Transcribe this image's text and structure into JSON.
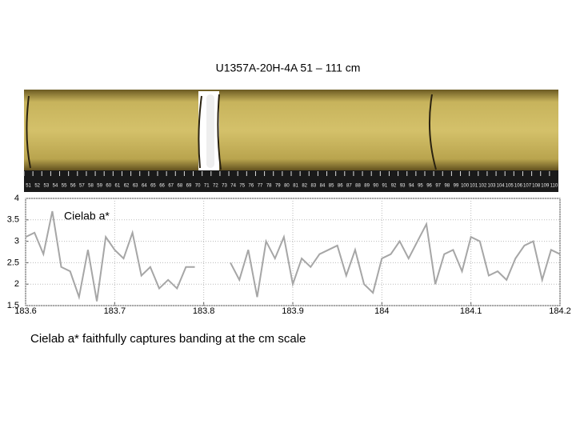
{
  "chart_data": {
    "type": "line",
    "title": "U1357A-20H-4A 51 – 111 cm",
    "annotation": "Cielab a*",
    "caption": "Cielab a* faithfully captures banding at the cm scale",
    "core_scale_labels": [
      51,
      52,
      53,
      54,
      55,
      56,
      57,
      58,
      59,
      60,
      61,
      62,
      63,
      64,
      65,
      66,
      67,
      68,
      69,
      70,
      71,
      72,
      73,
      74,
      75,
      76,
      77,
      78,
      79,
      80,
      81,
      82,
      83,
      84,
      85,
      86,
      87,
      88,
      89,
      90,
      91,
      92,
      93,
      94,
      95,
      96,
      97,
      98,
      99,
      100,
      101,
      102,
      103,
      104,
      105,
      106,
      107,
      108,
      109,
      110
    ],
    "x": [
      183.6,
      183.61,
      183.62,
      183.63,
      183.64,
      183.65,
      183.66,
      183.67,
      183.68,
      183.69,
      183.7,
      183.71,
      183.72,
      183.73,
      183.74,
      183.75,
      183.76,
      183.77,
      183.78,
      183.79,
      183.8,
      183.81,
      183.82,
      183.83,
      183.84,
      183.85,
      183.86,
      183.87,
      183.88,
      183.89,
      183.9,
      183.91,
      183.92,
      183.93,
      183.94,
      183.95,
      183.96,
      183.97,
      183.98,
      183.99,
      184,
      184.01,
      184.02,
      184.03,
      184.04,
      184.05,
      184.06,
      184.07,
      184.08,
      184.09,
      184.1,
      184.11,
      184.12,
      184.13,
      184.14,
      184.15,
      184.16,
      184.17,
      184.18,
      184.19,
      184.2
    ],
    "series": [
      {
        "color": "#a6a6a6",
        "values": [
          3.1,
          3.2,
          2.7,
          3.7,
          2.4,
          2.3,
          1.7,
          2.8,
          1.6,
          3.1,
          2.8,
          2.6,
          3.2,
          2.2,
          2.4,
          1.9,
          2.1,
          1.9,
          2.4,
          2.4,
          null,
          null,
          null,
          2.5,
          2.1,
          2.8,
          1.7,
          3.0,
          2.6,
          3.1,
          2.0,
          2.6,
          2.4,
          2.7,
          2.8,
          2.9,
          2.2,
          2.8,
          2.0,
          1.8,
          2.6,
          2.7,
          3.0,
          2.6,
          3.0,
          3.4,
          2.0,
          2.7,
          2.8,
          2.3,
          3.1,
          3.0,
          2.2,
          2.3,
          2.1,
          2.6,
          2.9,
          3.0,
          2.1,
          2.8,
          2.7
        ]
      }
    ],
    "xlim": [
      183.6,
      184.2
    ],
    "xticks": [
      183.6,
      183.7,
      183.8,
      183.9,
      184,
      184.1,
      184.2
    ],
    "ylim": [
      1.5,
      4
    ],
    "yticks": [
      1.5,
      2,
      2.5,
      3,
      3.5,
      4
    ],
    "grid": true
  }
}
